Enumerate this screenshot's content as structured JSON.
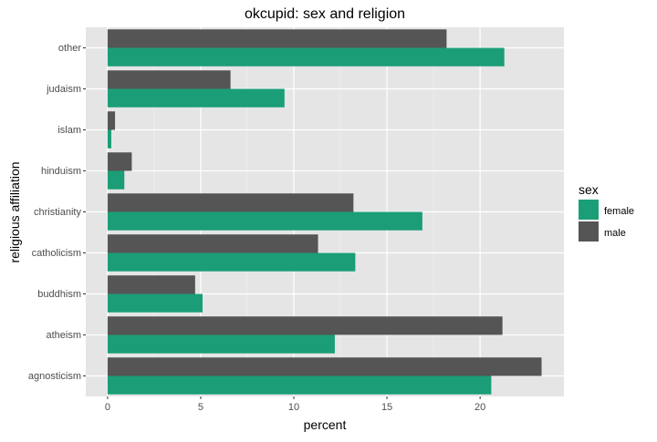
{
  "chart_data": {
    "type": "bar",
    "orientation": "horizontal",
    "title": "okcupid: sex and religion",
    "xlabel": "percent",
    "ylabel": "religious affiliation",
    "categories": [
      "agnosticism",
      "atheism",
      "buddhism",
      "catholicism",
      "christianity",
      "hinduism",
      "islam",
      "judaism",
      "other"
    ],
    "series": [
      {
        "name": "female",
        "color": "#1b9e77",
        "values": [
          20.6,
          12.2,
          5.1,
          13.3,
          16.9,
          0.9,
          0.2,
          9.5,
          21.3
        ]
      },
      {
        "name": "male",
        "color": "#555555",
        "values": [
          23.3,
          21.2,
          4.7,
          11.3,
          13.2,
          1.3,
          0.4,
          6.6,
          18.2
        ]
      }
    ],
    "xlim": [
      -1.17,
      24.5
    ],
    "xticks": [
      0,
      5,
      10,
      15,
      20
    ],
    "xtick_labels": [
      "0",
      "5",
      "10",
      "15",
      "20"
    ],
    "grid": true,
    "legend": {
      "title": "sex",
      "placement": "right",
      "entries": [
        "female",
        "male"
      ]
    }
  }
}
